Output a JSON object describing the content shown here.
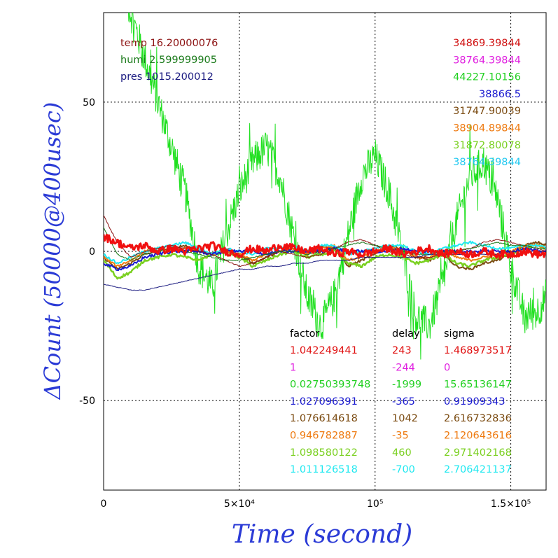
{
  "chart_data": {
    "type": "line",
    "xlabel": "Time (second)",
    "ylabel": "ΔCount (50000@400usec)",
    "xlim": [
      0,
      163000
    ],
    "ylim": [
      -80,
      80
    ],
    "grid": true,
    "x_ticks": [
      {
        "value": 0,
        "label": "0"
      },
      {
        "value": 50000,
        "label": "5×10⁴"
      },
      {
        "value": 100000,
        "label": "10⁵"
      },
      {
        "value": 150000,
        "label": "1.5×10⁵"
      }
    ],
    "y_ticks": [
      {
        "value": 50,
        "label": "50"
      },
      {
        "value": 0,
        "label": "0"
      },
      {
        "value": -50,
        "label": "-50"
      }
    ],
    "env_labels": [
      {
        "text": "temp 16.20000076",
        "color": "#8b1010"
      },
      {
        "text": "humi 2.599999905",
        "color": "#1a7a1a"
      },
      {
        "text": "pres 1015.200012",
        "color": "#1a1a80"
      }
    ],
    "channel_values": [
      {
        "text": "34869.39844",
        "color": "#d01010"
      },
      {
        "text": "38764.39844",
        "color": "#e020e0"
      },
      {
        "text": "44227.10156",
        "color": "#20d020"
      },
      {
        "text": "38866.5",
        "color": "#1a1ad0"
      },
      {
        "text": "31747.90039",
        "color": "#7a4a10"
      },
      {
        "text": "38904.89844",
        "color": "#ee7a10"
      },
      {
        "text": "31872.80078",
        "color": "#7ad020"
      },
      {
        "text": "38764.39844",
        "color": "#20c8f0"
      }
    ],
    "table": {
      "headers": [
        "factor",
        "delay",
        "sigma"
      ],
      "rows": [
        {
          "factor": "1.042249441",
          "delay": "243",
          "sigma": "1.468973517",
          "color": "#e01010"
        },
        {
          "factor": "1",
          "delay": "-244",
          "sigma": "0",
          "color": "#e020e0"
        },
        {
          "factor": "0.02750393748",
          "delay": "-1999",
          "sigma": "15.65136147",
          "color": "#20d020"
        },
        {
          "factor": "1.027096391",
          "delay": "-365",
          "sigma": "0.91909343",
          "color": "#1a1ad0"
        },
        {
          "factor": "1.076614618",
          "delay": "1042",
          "sigma": "2.616732836",
          "color": "#7a4a10"
        },
        {
          "factor": "0.946782887",
          "delay": "-35",
          "sigma": "2.120643616",
          "color": "#ee7a10"
        },
        {
          "factor": "1.098580122",
          "delay": "460",
          "sigma": "2.971402168",
          "color": "#7ad020"
        },
        {
          "factor": "1.011126518",
          "delay": "-700",
          "sigma": "2.706421137",
          "color": "#20e8f0"
        }
      ]
    },
    "series": [
      {
        "color": "#20e020",
        "noise": 6,
        "width": 1,
        "x": [
          0,
          5000,
          10000,
          15000,
          20000,
          25000,
          30000,
          35000,
          40000,
          45000,
          50000,
          55000,
          60000,
          65000,
          70000,
          75000,
          80000,
          85000,
          90000,
          95000,
          100000,
          105000,
          110000,
          115000,
          120000,
          125000,
          130000,
          135000,
          140000,
          145000,
          150000,
          155000,
          160000,
          163000
        ],
        "y": [
          110,
          95,
          80,
          65,
          50,
          35,
          20,
          -5,
          -12,
          5,
          20,
          30,
          35,
          25,
          5,
          -15,
          -25,
          -15,
          5,
          25,
          32,
          20,
          0,
          -22,
          -25,
          -10,
          10,
          25,
          30,
          18,
          -5,
          -22,
          -20,
          -15
        ]
      },
      {
        "color": "#7a4a10",
        "noise": 0.4,
        "width": 2,
        "x": [
          0,
          5000,
          10000,
          15000,
          20000,
          25000,
          30000,
          35000,
          40000,
          45000,
          50000,
          55000,
          60000,
          65000,
          70000,
          75000,
          80000,
          85000,
          90000,
          95000,
          100000,
          105000,
          110000,
          115000,
          120000,
          125000,
          130000,
          135000,
          140000,
          145000,
          150000,
          155000,
          160000,
          163000
        ],
        "y": [
          -2,
          -6,
          -4,
          -1,
          0,
          1,
          2,
          0,
          -1,
          1,
          -1,
          -4,
          -2,
          0,
          1,
          -1,
          2,
          1,
          -5,
          -3,
          -1,
          2,
          1,
          -2,
          -3,
          -1,
          -5,
          -6,
          -4,
          -3,
          -1,
          2,
          3,
          2
        ]
      },
      {
        "color": "#7ad020",
        "noise": 0.5,
        "width": 2.5,
        "x": [
          0,
          5000,
          10000,
          15000,
          20000,
          25000,
          30000,
          35000,
          40000,
          45000,
          50000,
          55000,
          60000,
          65000,
          70000,
          75000,
          80000,
          85000,
          90000,
          95000,
          100000,
          105000,
          110000,
          115000,
          120000,
          125000,
          130000,
          135000,
          140000,
          145000,
          150000,
          155000,
          160000,
          163000
        ],
        "y": [
          -3,
          -9,
          -7,
          -3,
          -2,
          -1,
          -2,
          -3,
          -1,
          0,
          -2,
          -5,
          -3,
          -1,
          0,
          -2,
          -1,
          0,
          -4,
          -5,
          -2,
          -1,
          -2,
          -4,
          -3,
          -1,
          -4,
          -5,
          -3,
          -2,
          -1,
          1,
          2,
          1
        ]
      },
      {
        "color": "#ee7a10",
        "noise": 0.4,
        "width": 2,
        "x": [
          0,
          5000,
          10000,
          15000,
          20000,
          25000,
          30000,
          35000,
          40000,
          45000,
          50000,
          55000,
          60000,
          65000,
          70000,
          75000,
          80000,
          85000,
          90000,
          95000,
          100000,
          105000,
          110000,
          115000,
          120000,
          125000,
          130000,
          135000,
          140000,
          145000,
          150000,
          155000,
          160000,
          163000
        ],
        "y": [
          -2,
          -5,
          -3,
          0,
          1,
          0,
          1,
          0,
          -1,
          0,
          -1,
          -3,
          -1,
          0,
          1,
          -1,
          1,
          2,
          -3,
          -2,
          0,
          1,
          1,
          -2,
          -2,
          0,
          -2,
          -3,
          -2,
          -1,
          0,
          2,
          2,
          1
        ]
      },
      {
        "color": "#20e8f0",
        "noise": 0.4,
        "width": 2,
        "x": [
          0,
          5000,
          10000,
          15000,
          20000,
          25000,
          30000,
          35000,
          40000,
          45000,
          50000,
          55000,
          60000,
          65000,
          70000,
          75000,
          80000,
          85000,
          90000,
          95000,
          100000,
          105000,
          110000,
          115000,
          120000,
          125000,
          130000,
          135000,
          140000,
          145000,
          150000,
          155000,
          160000,
          163000
        ],
        "y": [
          -1,
          -4,
          -2,
          0,
          1,
          2,
          3,
          1,
          -1,
          1,
          0,
          -1,
          1,
          1,
          2,
          0,
          2,
          2,
          -1,
          0,
          1,
          2,
          2,
          0,
          -1,
          1,
          2,
          3,
          2,
          1,
          1,
          2,
          2,
          1
        ]
      },
      {
        "color": "#1a1ad0",
        "noise": 0.5,
        "width": 2,
        "x": [
          0,
          5000,
          10000,
          15000,
          20000,
          25000,
          30000,
          35000,
          40000,
          45000,
          50000,
          55000,
          60000,
          65000,
          70000,
          75000,
          80000,
          85000,
          90000,
          95000,
          100000,
          105000,
          110000,
          115000,
          120000,
          125000,
          130000,
          135000,
          140000,
          145000,
          150000,
          155000,
          160000,
          163000
        ],
        "y": [
          -4,
          -6,
          -5,
          -2,
          -1,
          0,
          0,
          0,
          -1,
          0,
          0,
          0,
          -1,
          0,
          0,
          0,
          0,
          1,
          0,
          0,
          0,
          0,
          1,
          0,
          0,
          0,
          0,
          0,
          0,
          0,
          0,
          1,
          0,
          0
        ]
      },
      {
        "color": "#8b1010",
        "noise": 0.2,
        "width": 1,
        "x": [
          0,
          5000,
          10000,
          15000,
          20000,
          25000,
          30000,
          35000,
          40000,
          45000,
          50000,
          55000,
          60000,
          65000,
          70000,
          75000,
          80000,
          85000,
          90000,
          95000,
          100000,
          105000,
          110000,
          115000,
          120000,
          125000,
          130000,
          135000,
          140000,
          145000,
          150000,
          155000,
          160000,
          163000
        ],
        "y": [
          12,
          3,
          -2,
          0,
          1,
          2,
          1,
          0,
          -1,
          -3,
          -5,
          -4,
          -2,
          0,
          -1,
          -2,
          -1,
          1,
          3,
          4,
          2,
          0,
          -1,
          -2,
          -2,
          -1,
          0,
          1,
          3,
          4,
          3,
          2,
          1,
          0
        ]
      },
      {
        "color": "#1a7a1a",
        "noise": 0.2,
        "width": 1,
        "x": [
          0,
          5000,
          10000,
          15000,
          20000,
          25000,
          30000,
          35000,
          40000,
          45000,
          50000,
          55000,
          60000,
          65000,
          70000,
          75000,
          80000,
          85000,
          90000,
          95000,
          100000,
          105000,
          110000,
          115000,
          120000,
          125000,
          130000,
          135000,
          140000,
          145000,
          150000,
          155000,
          160000,
          163000
        ],
        "y": [
          8,
          -1,
          -3,
          -1,
          0,
          1,
          0,
          -1,
          -2,
          -3,
          -3,
          -2,
          -1,
          0,
          0,
          -1,
          0,
          1,
          2,
          3,
          2,
          1,
          0,
          -1,
          -1,
          0,
          0,
          1,
          2,
          3,
          2,
          2,
          1,
          1
        ]
      },
      {
        "color": "#1a1a80",
        "noise": 0.1,
        "width": 1,
        "x": [
          0,
          5000,
          10000,
          15000,
          20000,
          25000,
          30000,
          35000,
          40000,
          45000,
          50000,
          55000,
          60000,
          65000,
          70000,
          75000,
          80000,
          85000,
          90000,
          95000,
          100000,
          105000,
          110000,
          115000,
          120000,
          125000,
          130000,
          135000,
          140000,
          145000,
          150000,
          155000,
          160000,
          163000
        ],
        "y": [
          -11,
          -12,
          -13,
          -13,
          -12,
          -11,
          -10,
          -9,
          -8,
          -7,
          -6,
          -6,
          -5,
          -5,
          -4,
          -4,
          -3,
          -3,
          -3,
          -2,
          -2,
          -2,
          -2,
          -2,
          -1,
          -1,
          -1,
          -1,
          -1,
          -1,
          0,
          0,
          0,
          0
        ]
      },
      {
        "color": "#f01010",
        "noise": 1.3,
        "width": 3,
        "x": [
          0,
          5000,
          10000,
          15000,
          20000,
          25000,
          30000,
          35000,
          40000,
          45000,
          50000,
          55000,
          60000,
          65000,
          70000,
          75000,
          80000,
          85000,
          90000,
          95000,
          100000,
          105000,
          110000,
          115000,
          120000,
          125000,
          130000,
          135000,
          140000,
          145000,
          150000,
          155000,
          160000,
          163000
        ],
        "y": [
          5,
          3,
          1,
          2,
          0,
          1,
          0,
          1,
          2,
          0,
          -1,
          1,
          0,
          2,
          1,
          0,
          1,
          -1,
          0,
          -1,
          0,
          1,
          -1,
          0,
          1,
          -1,
          0,
          -1,
          0,
          -1,
          -1,
          0,
          -1,
          -1
        ]
      }
    ]
  }
}
